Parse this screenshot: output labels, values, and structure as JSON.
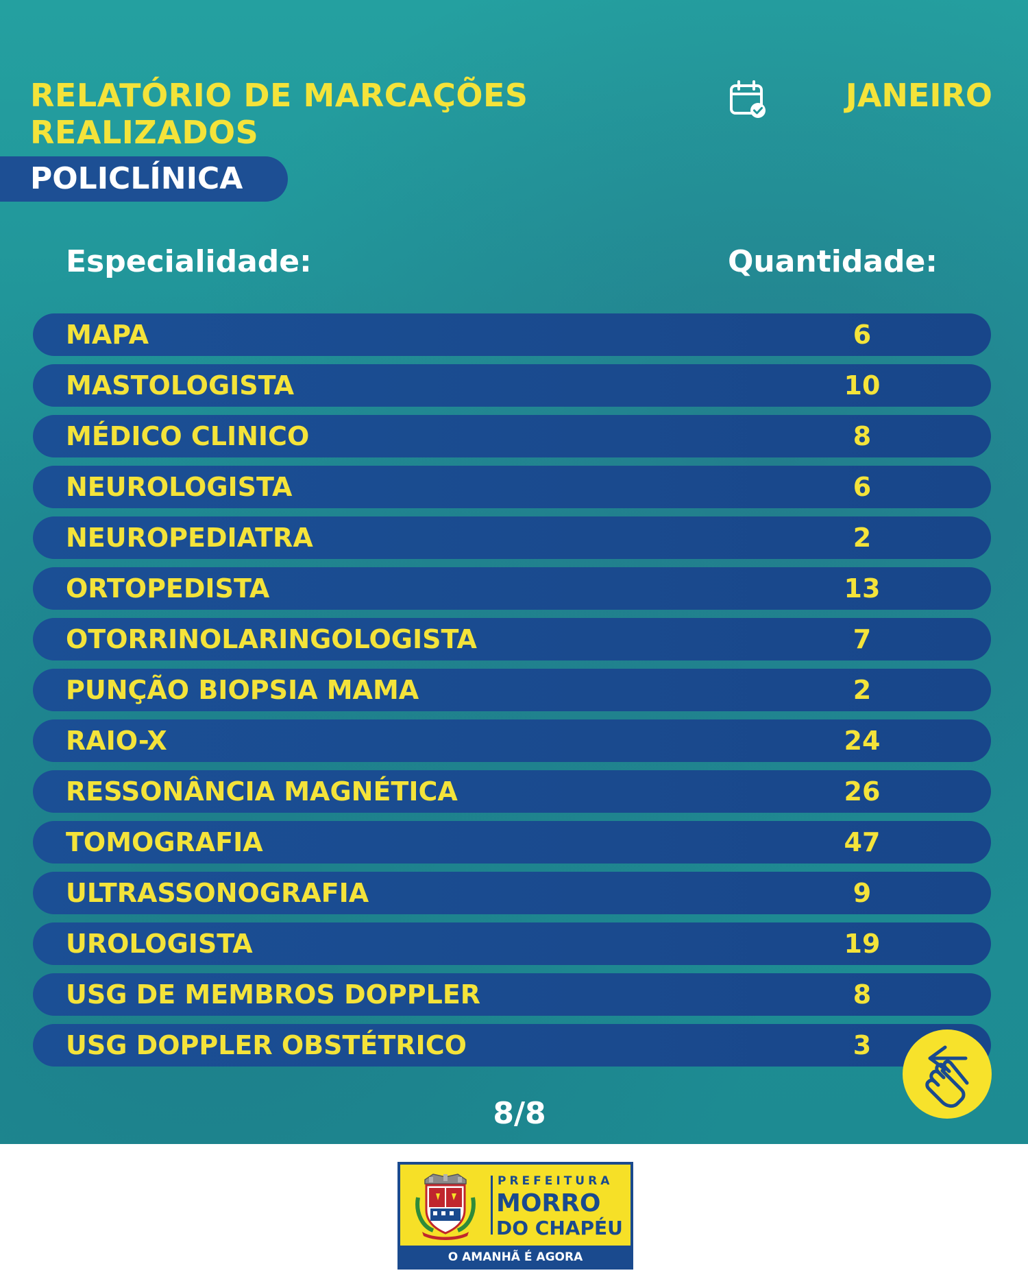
{
  "header": {
    "title_line1": "RELATÓRIO DE MARCAÇÕES",
    "title_line2": "REALIZADOS",
    "month": "JANEIRO",
    "unit": "POLICLÍNICA",
    "calendar_icon": "calendar-check-icon"
  },
  "table": {
    "col_specialty": "Especialidade:",
    "col_quantity": "Quantidade:",
    "rows": [
      {
        "name": "MAPA",
        "qty": "6"
      },
      {
        "name": "MASTOLOGISTA",
        "qty": "10"
      },
      {
        "name": "MÉDICO CLINICO",
        "qty": "8"
      },
      {
        "name": "NEUROLOGISTA",
        "qty": "6"
      },
      {
        "name": "NEUROPEDIATRA",
        "qty": "2"
      },
      {
        "name": "ORTOPEDISTA",
        "qty": "13"
      },
      {
        "name": "OTORRINOLARINGOLOGISTA",
        "qty": "7"
      },
      {
        "name": "PUNÇÃO BIOPSIA MAMA",
        "qty": "2"
      },
      {
        "name": "RAIO-X",
        "qty": "24"
      },
      {
        "name": "RESSONÂNCIA MAGNÉTICA",
        "qty": "26"
      },
      {
        "name": "TOMOGRAFIA",
        "qty": "47"
      },
      {
        "name": "ULTRASSONOGRAFIA",
        "qty": "9"
      },
      {
        "name": "UROLOGISTA",
        "qty": "19"
      },
      {
        "name": "USG DE MEMBROS DOPPLER",
        "qty": "8"
      },
      {
        "name": "USG DOPPLER OBSTÉTRICO",
        "qty": "3"
      }
    ]
  },
  "pagination": "8/8",
  "swipe_icon": "swipe-hand-icon",
  "logo": {
    "prefeitura": "PREFEITURA",
    "line1": "MORRO",
    "line2": "DO CHAPÉU",
    "slogan": "O AMANHÃ É AGORA"
  },
  "colors": {
    "teal_background": "#1f9598",
    "accent_yellow": "#f4e33a",
    "row_blue": "#1b4f95"
  }
}
